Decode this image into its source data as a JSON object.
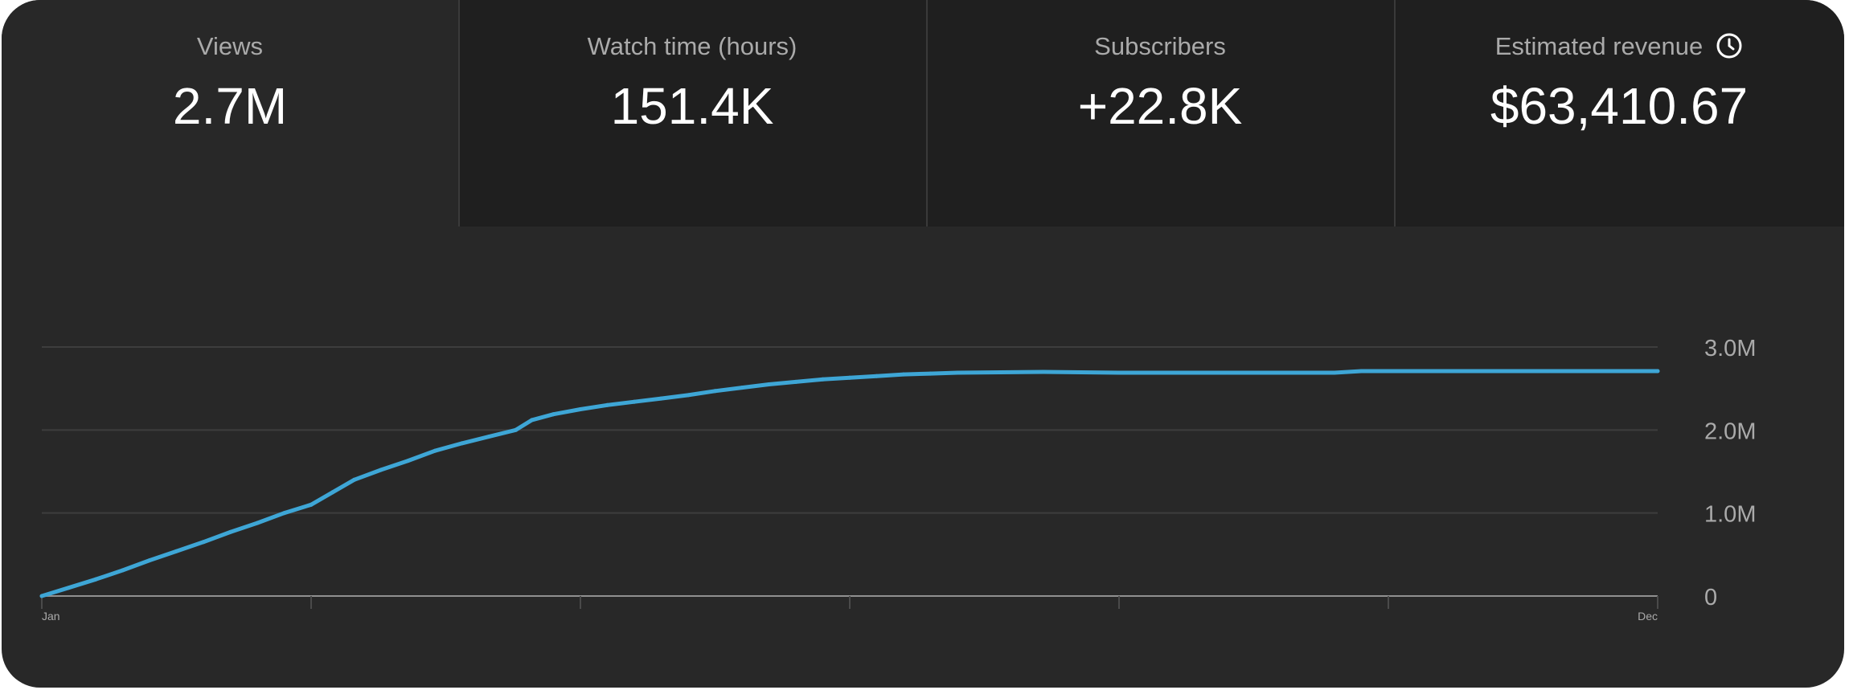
{
  "metrics": [
    {
      "label": "Views",
      "value": "2.7M",
      "active": true
    },
    {
      "label": "Watch time (hours)",
      "value": "151.4K",
      "active": false
    },
    {
      "label": "Subscribers",
      "value": "+22.8K",
      "active": false
    },
    {
      "label": "Estimated revenue",
      "value": "$63,410.67",
      "active": false,
      "icon": "clock-icon"
    }
  ],
  "chart_data": {
    "type": "line",
    "series": [
      {
        "color": "#3ea6d6",
        "points": [
          [
            0,
            0.0
          ],
          [
            0.5,
            0.1
          ],
          [
            1,
            0.2
          ],
          [
            1.5,
            0.31
          ],
          [
            2,
            0.43
          ],
          [
            2.5,
            0.54
          ],
          [
            3,
            0.65
          ],
          [
            3.5,
            0.77
          ],
          [
            4,
            0.88
          ],
          [
            4.5,
            1.0
          ],
          [
            5,
            1.1
          ],
          [
            5.4,
            1.25
          ],
          [
            5.8,
            1.4
          ],
          [
            6.3,
            1.52
          ],
          [
            6.8,
            1.63
          ],
          [
            7.3,
            1.75
          ],
          [
            7.8,
            1.84
          ],
          [
            8.3,
            1.92
          ],
          [
            8.8,
            2.0
          ],
          [
            9.1,
            2.12
          ],
          [
            9.5,
            2.19
          ],
          [
            10,
            2.25
          ],
          [
            10.5,
            2.3
          ],
          [
            11,
            2.34
          ],
          [
            11.5,
            2.38
          ],
          [
            12,
            2.42
          ],
          [
            12.5,
            2.47
          ],
          [
            13,
            2.51
          ],
          [
            13.5,
            2.55
          ],
          [
            14,
            2.58
          ],
          [
            14.5,
            2.61
          ],
          [
            15,
            2.63
          ],
          [
            15.5,
            2.65
          ],
          [
            16,
            2.67
          ],
          [
            16.5,
            2.68
          ],
          [
            17,
            2.69
          ],
          [
            18.6,
            2.7
          ],
          [
            20,
            2.69
          ],
          [
            22,
            2.69
          ],
          [
            24,
            2.69
          ],
          [
            24.5,
            2.71
          ],
          [
            26,
            2.71
          ],
          [
            28,
            2.71
          ],
          [
            30,
            2.71
          ]
        ]
      }
    ],
    "xlim": [
      0,
      30
    ],
    "ylim": [
      0,
      3.0
    ],
    "y_ticks": [
      {
        "value": 0,
        "label": "0"
      },
      {
        "value": 1.0,
        "label": "1.0M"
      },
      {
        "value": 2.0,
        "label": "2.0M"
      },
      {
        "value": 3.0,
        "label": "3.0M"
      }
    ],
    "x_tick_count": 7,
    "x_labels": [
      {
        "value": 0,
        "label": "Jan"
      },
      {
        "value": 30,
        "label": "Dec"
      }
    ],
    "grid": true,
    "axis_color": "#909090",
    "grid_color": "#3d3d3d"
  }
}
